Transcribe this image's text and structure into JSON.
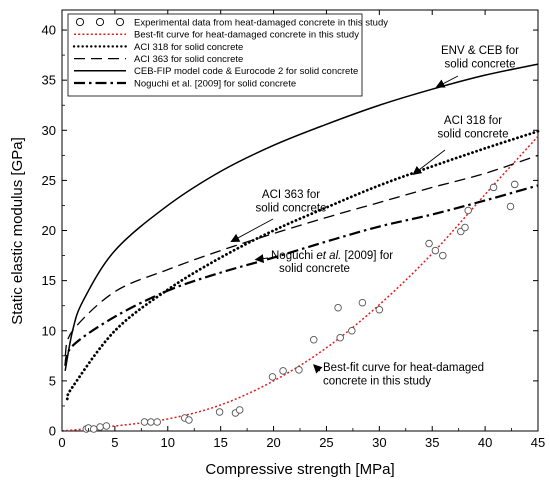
{
  "chart_data": {
    "type": "scatter",
    "xlabel": "Compressive strength [MPa]",
    "ylabel": "Static elastic modulus [GPa]",
    "xlim": [
      0,
      45
    ],
    "ylim": [
      0,
      42
    ],
    "xticks": [
      0,
      5,
      10,
      15,
      20,
      25,
      30,
      35,
      40,
      45
    ],
    "yticks": [
      0,
      5,
      10,
      15,
      20,
      25,
      30,
      35,
      40
    ],
    "grid": false,
    "legend_position": "top-left",
    "legend": [
      {
        "label": "Experimental data from heat-damaged concrete in this study",
        "style": "circle",
        "color": "#000000"
      },
      {
        "label": "Best-fit curve for heat-damaged concrete in this study",
        "style": "dotted",
        "color": "#e8191c"
      },
      {
        "label": "ACI 318 for solid concrete",
        "style": "dotted-bold",
        "color": "#000000"
      },
      {
        "label": "ACI 363 for solid concrete",
        "style": "dashed",
        "color": "#000000"
      },
      {
        "label": "CEB-FIP model code & Eurocode 2 for solid concrete",
        "style": "solid",
        "color": "#000000"
      },
      {
        "label": "Noguchi et al. [2009] for solid concrete",
        "style": "dashdot",
        "color": "#000000"
      }
    ],
    "series": [
      {
        "type": "scatter",
        "x": [
          2.3,
          2.5,
          3.0,
          3.6,
          4.2,
          7.8,
          8.4,
          9.0,
          11.6,
          12.0,
          14.9,
          16.4,
          16.8,
          19.9,
          20.9,
          22.4,
          23.8,
          26.1,
          26.3,
          27.4,
          28.4,
          30.0,
          34.7,
          35.3,
          36.0,
          37.7,
          38.1,
          38.4,
          40.8,
          42.4,
          42.8
        ],
        "y": [
          0.2,
          0.3,
          0.2,
          0.4,
          0.5,
          0.9,
          0.9,
          0.9,
          1.3,
          1.1,
          1.9,
          1.8,
          2.1,
          5.4,
          6.0,
          6.1,
          9.1,
          12.3,
          9.3,
          10.0,
          12.8,
          12.1,
          18.7,
          18.0,
          17.5,
          19.9,
          20.3,
          22.0,
          24.3,
          22.4,
          24.6
        ]
      },
      {
        "type": "line",
        "x": [
          0,
          5,
          10,
          15,
          20,
          25,
          30,
          35,
          40,
          45
        ],
        "y": [
          0,
          0.5,
          1.2,
          2.6,
          5.0,
          8.3,
          12.6,
          17.7,
          23.6,
          29.4
        ]
      },
      {
        "type": "line",
        "x": [
          0.5,
          1,
          5,
          10,
          15,
          20,
          25,
          30,
          35,
          40,
          45
        ],
        "y": [
          3.2,
          4.4,
          10.0,
          14.1,
          17.3,
          20.0,
          22.3,
          24.5,
          26.4,
          28.2,
          29.9
        ]
      },
      {
        "type": "line",
        "x": [
          0.3,
          1,
          5,
          10,
          15,
          20,
          25,
          30,
          35,
          40,
          45
        ],
        "y": [
          7.5,
          10.0,
          13.9,
          16.1,
          18.0,
          19.7,
          21.3,
          22.8,
          24.3,
          25.7,
          27.5
        ]
      },
      {
        "type": "line",
        "x": [
          0.3,
          1,
          2,
          5,
          10,
          15,
          20,
          25,
          30,
          35,
          40,
          45
        ],
        "y": [
          6.0,
          10.0,
          13.0,
          18.0,
          22.5,
          25.9,
          28.5,
          30.6,
          32.5,
          34.1,
          35.5,
          36.6
        ]
      },
      {
        "type": "line",
        "x": [
          0.3,
          1,
          5,
          10,
          15,
          20,
          25,
          30,
          35,
          40,
          45
        ],
        "y": [
          6.5,
          8.5,
          11.4,
          14.0,
          15.8,
          17.3,
          18.9,
          20.4,
          21.6,
          23.0,
          24.5
        ]
      }
    ],
    "annotations": [
      {
        "lines": [
          "ENV & CEB for",
          "solid concrete"
        ],
        "arrow_to": [
          35.4,
          34.3
        ]
      },
      {
        "lines": [
          "ACI 318 for",
          "solid concrete"
        ],
        "arrow_to": [
          33.2,
          25.6
        ]
      },
      {
        "lines": [
          "ACI 363 for",
          "solid concrete"
        ],
        "arrow_to": [
          16.0,
          18.9
        ]
      },
      {
        "lines": [
          "Noguchi ",
          "et al.",
          " [2009] for",
          "solid concrete"
        ],
        "arrow_to": [
          18.3,
          17.1
        ]
      },
      {
        "lines": [
          "Best-fit curve for heat-damaged",
          "concrete in this study"
        ],
        "arrow_to": [
          23.8,
          6.6
        ]
      }
    ]
  }
}
